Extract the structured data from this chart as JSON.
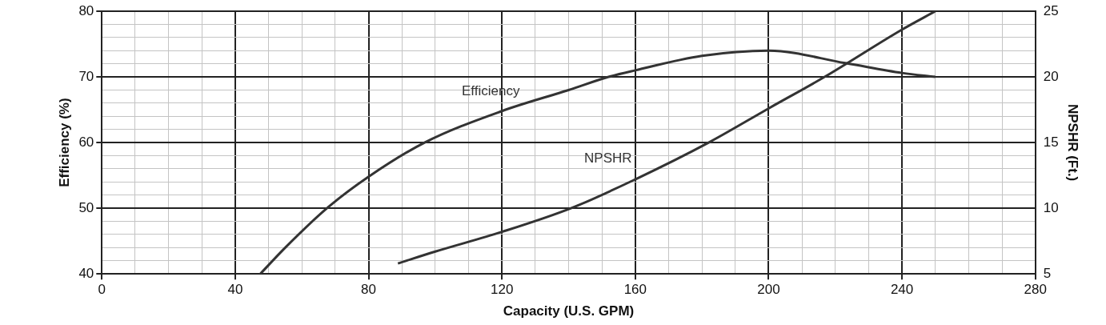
{
  "chart_data": {
    "type": "line",
    "xlabel": "Capacity (U.S. GPM)",
    "ylabel": "Efficiency (%)",
    "y2label": "NPSHR (Ft.)",
    "xlim": [
      0,
      280
    ],
    "xticks": [
      0,
      {
        "value": 10,
        "label": null
      },
      {
        "value": 20,
        "label": null
      },
      {
        "value": 30,
        "label": null
      },
      40,
      {
        "value": 50,
        "label": null
      },
      {
        "value": 60,
        "label": null
      },
      {
        "value": 70,
        "label": null
      },
      80,
      {
        "value": 90,
        "label": null
      },
      {
        "value": 100,
        "label": null
      },
      {
        "value": 110,
        "label": null
      },
      120,
      {
        "value": 130,
        "label": null
      },
      {
        "value": 140,
        "label": null
      },
      {
        "value": 150,
        "label": null
      },
      160,
      {
        "value": 170,
        "label": null
      },
      {
        "value": 180,
        "label": null
      },
      {
        "value": 190,
        "label": null
      },
      200,
      {
        "value": 210,
        "label": null
      },
      {
        "value": 220,
        "label": null
      },
      {
        "value": 230,
        "label": null
      },
      240,
      {
        "value": 250,
        "label": null
      },
      {
        "value": 260,
        "label": null
      },
      {
        "value": 270,
        "label": null
      },
      280
    ],
    "ylim": [
      40,
      80
    ],
    "yticks": [
      40,
      {
        "value": 42,
        "label": null
      },
      {
        "value": 44,
        "label": null
      },
      {
        "value": 46,
        "label": null
      },
      {
        "value": 48,
        "label": null
      },
      50,
      {
        "value": 52,
        "label": null
      },
      {
        "value": 54,
        "label": null
      },
      {
        "value": 56,
        "label": null
      },
      {
        "value": 58,
        "label": null
      },
      60,
      {
        "value": 62,
        "label": null
      },
      {
        "value": 64,
        "label": null
      },
      {
        "value": 66,
        "label": null
      },
      {
        "value": 68,
        "label": null
      },
      70,
      {
        "value": 72,
        "label": null
      },
      {
        "value": 74,
        "label": null
      },
      {
        "value": 76,
        "label": null
      },
      {
        "value": 78,
        "label": null
      },
      80
    ],
    "y2lim": [
      5,
      25
    ],
    "y2ticks": [
      5,
      10,
      15,
      20,
      25
    ],
    "grid": true,
    "legend": false,
    "marker": "none",
    "line_style": "solid",
    "series": [
      {
        "name": "Efficiency",
        "color": "#333333",
        "x": [
          47.5,
          55,
          67.5,
          80,
          96.8,
          120,
          140,
          152,
          160,
          180,
          200,
          223,
          240,
          250
        ],
        "values": [
          40,
          44,
          50,
          54.8,
          60,
          64.8,
          68,
          70,
          71,
          73.2,
          74,
          72.1,
          70.6,
          70
        ]
      },
      {
        "name": "NPSHR",
        "color": "#333333",
        "axis": "y2",
        "x": [
          88.8,
          100,
          120,
          140.7,
          160,
          182,
          200,
          216.8,
          240,
          250
        ],
        "values": [
          5.8,
          6.7,
          8.2,
          10,
          12.2,
          15,
          17.6,
          20,
          23.6,
          25
        ]
      }
    ]
  }
}
